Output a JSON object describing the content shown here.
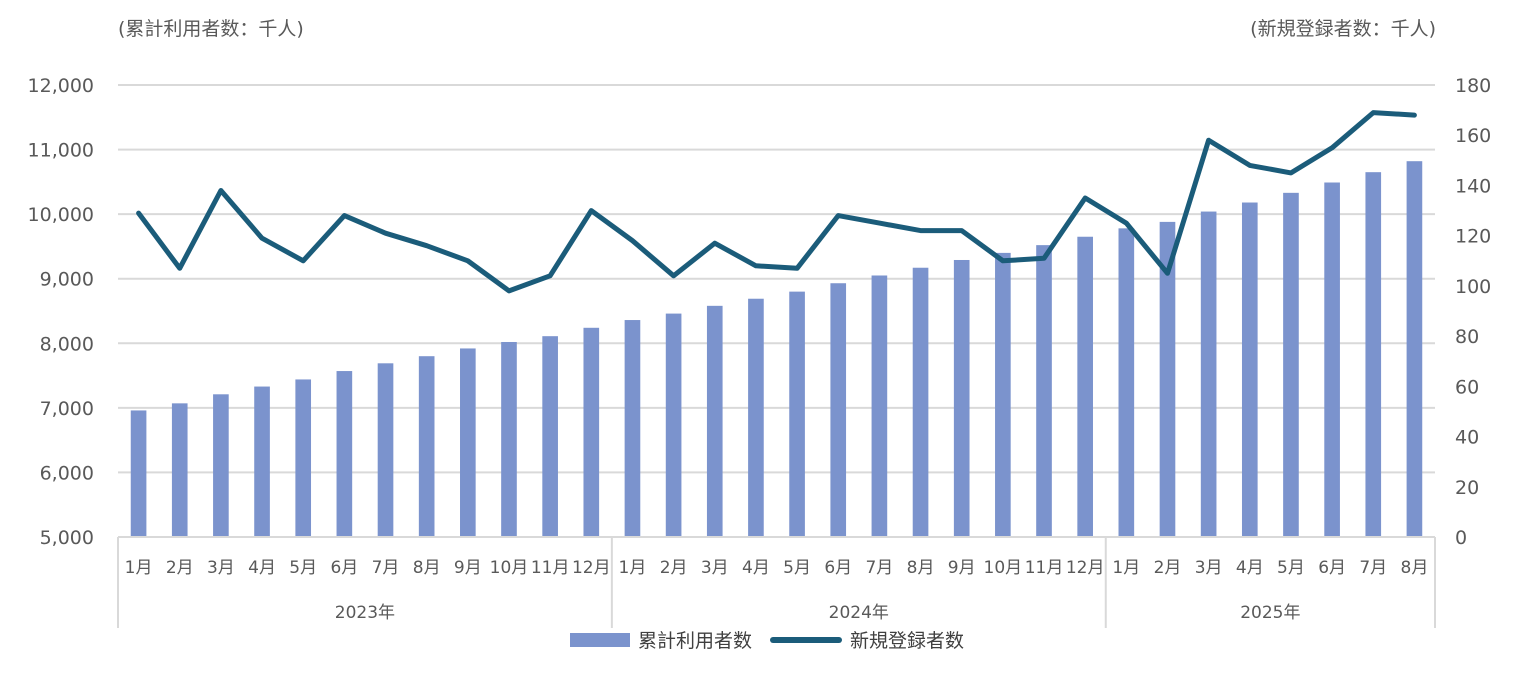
{
  "chart_data": {
    "type": "bar+line",
    "unit_left": "(累計利用者数：千人)",
    "unit_right": "(新規登録者数：千人)",
    "left_axis": {
      "ticks": [
        "5,000",
        "6,000",
        "7,000",
        "8,000",
        "9,000",
        "10,000",
        "11,000",
        "12,000"
      ],
      "ylim": [
        5000,
        12000
      ]
    },
    "right_axis": {
      "ticks": [
        "0",
        "20",
        "40",
        "60",
        "80",
        "100",
        "120",
        "140",
        "160",
        "180"
      ],
      "ylim": [
        0,
        180
      ]
    },
    "months": [
      "1月",
      "2月",
      "3月",
      "4月",
      "5月",
      "6月",
      "7月",
      "8月",
      "9月",
      "10月",
      "11月",
      "12月",
      "1月",
      "2月",
      "3月",
      "4月",
      "5月",
      "6月",
      "7月",
      "8月",
      "9月",
      "10月",
      "11月",
      "12月",
      "1月",
      "2月",
      "3月",
      "4月",
      "5月",
      "6月",
      "7月",
      "8月"
    ],
    "years": [
      {
        "label": "2023年",
        "count": 12
      },
      {
        "label": "2024年",
        "count": 12
      },
      {
        "label": "2025年",
        "count": 8
      }
    ],
    "series": [
      {
        "name": "累計利用者数",
        "type": "bar",
        "axis": "left",
        "color": "#7b93cd",
        "values": [
          6960,
          7070,
          7210,
          7330,
          7440,
          7570,
          7690,
          7800,
          7920,
          8020,
          8110,
          8240,
          8360,
          8460,
          8580,
          8690,
          8800,
          8930,
          9050,
          9170,
          9290,
          9400,
          9520,
          9650,
          9780,
          9880,
          10040,
          10180,
          10330,
          10490,
          10650,
          10820
        ]
      },
      {
        "name": "新規登録者数",
        "type": "line",
        "axis": "right",
        "color": "#1b5c7a",
        "values": [
          129,
          107,
          138,
          119,
          110,
          128,
          121,
          116,
          110,
          98,
          104,
          130,
          118,
          104,
          117,
          108,
          107,
          128,
          125,
          122,
          122,
          110,
          111,
          135,
          125,
          105,
          158,
          148,
          145,
          155,
          169,
          168
        ]
      }
    ],
    "grid": true,
    "legend_position": "bottom"
  }
}
